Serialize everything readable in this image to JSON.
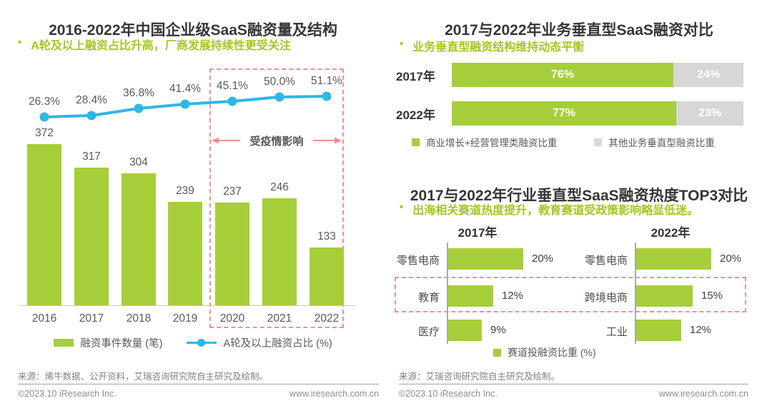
{
  "page": {
    "bullet": "•",
    "left_footer": {
      "source": "来源：烯牛数据、公开资料，艾瑞咨询研究院自主研究及绘制。",
      "copyright": "©2023.10 iResearch Inc.",
      "website": "www.iresearch.com.cn"
    },
    "right_footer": {
      "source": "来源：艾瑞咨询研究院自主研究及绘制。",
      "copyright": "©2023.10 iResearch Inc.",
      "website": "www.iresearch.com.cn"
    }
  },
  "colors": {
    "green": "#A6CE39",
    "blue": "#2EB6E8",
    "gray": "#D7D7D7",
    "red": "#F28F8F",
    "title": "#363636",
    "label": "#595959"
  },
  "chart_data": [
    {
      "id": "funding_volume_structure",
      "type": "bar+line",
      "title": "2016-2022年中国企业级SaaS融资量及结构",
      "subtitle": "A轮及以上融资占比升高，厂商发展持续性更受关注",
      "categories": [
        "2016",
        "2017",
        "2018",
        "2019",
        "2020",
        "2021",
        "2022"
      ],
      "series": [
        {
          "name": "融资事件数量 (笔)",
          "type": "bar",
          "values": [
            372,
            317,
            304,
            239,
            237,
            246,
            133
          ]
        },
        {
          "name": "A轮及以上融资占比 (%)",
          "type": "line",
          "values": [
            26.3,
            28.4,
            36.8,
            41.4,
            45.1,
            50.0,
            51.1
          ],
          "labels": [
            "26.3%",
            "28.4%",
            "36.8%",
            "41.4%",
            "45.1%",
            "50.0%",
            "51.1%"
          ]
        }
      ],
      "annotation": {
        "label": "受疫情影响",
        "range": [
          "2020",
          "2022"
        ]
      }
    },
    {
      "id": "business_vertical_compare",
      "type": "stacked-bar",
      "title": "2017与2022年业务垂直型SaaS融资对比",
      "subtitle": "业务垂直型融资结构维持动态平衡",
      "categories": [
        "2017年",
        "2022年"
      ],
      "series": [
        {
          "name": "商业增长+经营管理类融资比重",
          "values": [
            76,
            77
          ]
        },
        {
          "name": "其他业务垂直型融资比重",
          "values": [
            24,
            23
          ]
        }
      ],
      "xlim": [
        0,
        100
      ]
    },
    {
      "id": "industry_vertical_top3",
      "type": "bar",
      "title": "2017与2022年行业垂直型SaaS融资热度TOP3对比",
      "subtitle": "出海相关赛道热度提升，教育赛道受政策影响略显低迷。",
      "groups": [
        {
          "year": "2017年",
          "categories": [
            "零售电商",
            "教育",
            "医疗"
          ],
          "values": [
            20,
            12,
            9
          ]
        },
        {
          "year": "2022年",
          "categories": [
            "零售电商",
            "跨境电商",
            "工业"
          ],
          "values": [
            20,
            15,
            12
          ]
        }
      ],
      "legend": "赛道投融资比重 (%)",
      "highlight_rows": [
        "教育",
        "跨境电商"
      ]
    }
  ]
}
